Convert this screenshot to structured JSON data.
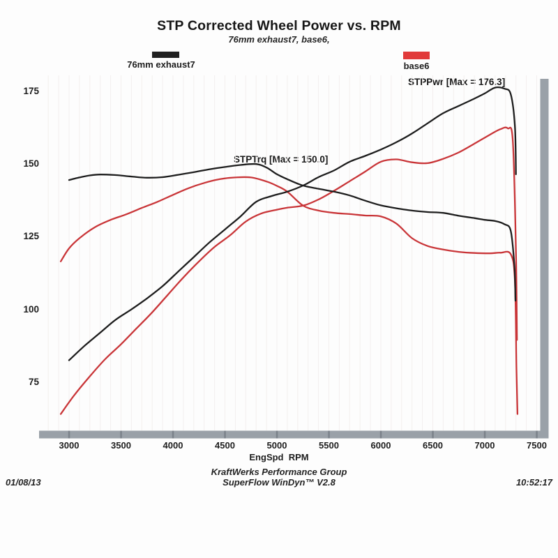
{
  "header": {
    "title": "STP Corrected Wheel Power vs. RPM",
    "subtitle": "76mm exhaust7, base6,"
  },
  "legend": [
    {
      "label": "76mm exhaust7",
      "color": "#202020"
    },
    {
      "label": "base6",
      "color": "#e13a3a"
    }
  ],
  "annotations": {
    "stppwr": "STPPwr [Max = 176.3]",
    "stptrq": "STPTrq [Max = 150.0]"
  },
  "footer": {
    "date": "01/08/13",
    "line1": "KraftWerks Performance Group",
    "line2": "SuperFlow WinDyn™ V2.8",
    "time": "10:52:17"
  },
  "chart_data": {
    "type": "line",
    "title": "STP Corrected Wheel Power vs. RPM",
    "subtitle": "76mm exhaust7, base6,",
    "xlabel": "EngSpd  RPM",
    "ylabel": "",
    "xlim": [
      2800,
      7550
    ],
    "ylim": [
      58,
      184
    ],
    "x_ticks": [
      3000,
      3500,
      4000,
      4500,
      5000,
      5500,
      6000,
      6500,
      7000,
      7500
    ],
    "y_ticks": [
      75,
      100,
      125,
      150,
      175
    ],
    "grid": "faint vertical lines every 100 RPM, no horizontal gridlines",
    "legend_position": "top",
    "axis_frame": {
      "bottom_bar": true,
      "right_bar": true,
      "color": "#9aa1a8",
      "notch_color": "#7b828a"
    },
    "max_values": {
      "stppwr_max": 176.3,
      "stptrq_max": 150.0
    },
    "series": [
      {
        "name": "base6 STPTrq",
        "run": "base6",
        "channel": "STPTrq",
        "color": "#c93538",
        "points": [
          [
            2920,
            116.5
          ],
          [
            3000,
            121
          ],
          [
            3100,
            124.5
          ],
          [
            3250,
            128.3
          ],
          [
            3400,
            130.8
          ],
          [
            3550,
            132.7
          ],
          [
            3700,
            134.9
          ],
          [
            3850,
            137
          ],
          [
            4000,
            139.4
          ],
          [
            4150,
            141.7
          ],
          [
            4300,
            143.5
          ],
          [
            4450,
            144.8
          ],
          [
            4600,
            145.4
          ],
          [
            4750,
            145.4
          ],
          [
            4900,
            144
          ],
          [
            5000,
            142.5
          ],
          [
            5100,
            140.5
          ],
          [
            5252,
            135.7
          ],
          [
            5400,
            134
          ],
          [
            5550,
            133.2
          ],
          [
            5700,
            132.8
          ],
          [
            5850,
            132.3
          ],
          [
            6000,
            132
          ],
          [
            6150,
            129.5
          ],
          [
            6300,
            124.5
          ],
          [
            6450,
            121.8
          ],
          [
            6600,
            120.6
          ],
          [
            6750,
            119.8
          ],
          [
            6900,
            119.4
          ],
          [
            7050,
            119.3
          ],
          [
            7150,
            119.5
          ],
          [
            7250,
            119
          ],
          [
            7290,
            110
          ],
          [
            7305,
            80
          ],
          [
            7315,
            64
          ]
        ]
      },
      {
        "name": "base6 STPPwr",
        "run": "base6",
        "channel": "STPPwr",
        "color": "#c93538",
        "points": [
          [
            2920,
            64
          ],
          [
            3050,
            70.5
          ],
          [
            3200,
            77
          ],
          [
            3350,
            83
          ],
          [
            3500,
            88
          ],
          [
            3650,
            93.5
          ],
          [
            3800,
            99
          ],
          [
            3950,
            105
          ],
          [
            4100,
            111
          ],
          [
            4250,
            116.5
          ],
          [
            4400,
            121.5
          ],
          [
            4550,
            125.5
          ],
          [
            4700,
            130.2
          ],
          [
            4850,
            133
          ],
          [
            5000,
            134.3
          ],
          [
            5100,
            135
          ],
          [
            5252,
            135.7
          ],
          [
            5400,
            137.8
          ],
          [
            5550,
            140.8
          ],
          [
            5700,
            144.1
          ],
          [
            5850,
            147.4
          ],
          [
            6000,
            150.8
          ],
          [
            6150,
            151.6
          ],
          [
            6300,
            150.6
          ],
          [
            6450,
            150.3
          ],
          [
            6600,
            151.8
          ],
          [
            6750,
            154
          ],
          [
            6900,
            157
          ],
          [
            7050,
            160.1
          ],
          [
            7150,
            162
          ],
          [
            7220,
            162.3
          ],
          [
            7270,
            158
          ],
          [
            7300,
            120
          ],
          [
            7310,
            89.5
          ]
        ]
      },
      {
        "name": "76mm exhaust7 STPTrq",
        "run": "76mm exhaust7",
        "channel": "STPTrq",
        "color": "#1d1d1d",
        "points": [
          [
            3000,
            144.5
          ],
          [
            3100,
            145.4
          ],
          [
            3200,
            146.1
          ],
          [
            3300,
            146.4
          ],
          [
            3450,
            146.2
          ],
          [
            3600,
            145.7
          ],
          [
            3750,
            145.3
          ],
          [
            3900,
            145.5
          ],
          [
            4050,
            146.3
          ],
          [
            4200,
            147.2
          ],
          [
            4350,
            148.2
          ],
          [
            4500,
            149
          ],
          [
            4650,
            149.7
          ],
          [
            4800,
            150
          ],
          [
            4900,
            148.8
          ],
          [
            5000,
            146.5
          ],
          [
            5100,
            144.8
          ],
          [
            5252,
            142.6
          ],
          [
            5400,
            141.5
          ],
          [
            5550,
            140.5
          ],
          [
            5700,
            139.2
          ],
          [
            5850,
            137.4
          ],
          [
            6000,
            135.8
          ],
          [
            6150,
            134.8
          ],
          [
            6300,
            134
          ],
          [
            6450,
            133.5
          ],
          [
            6600,
            133.2
          ],
          [
            6750,
            132.2
          ],
          [
            6900,
            131.4
          ],
          [
            7000,
            130.8
          ],
          [
            7100,
            130.4
          ],
          [
            7190,
            129.3
          ],
          [
            7250,
            127
          ],
          [
            7285,
            115
          ],
          [
            7295,
            103
          ]
        ]
      },
      {
        "name": "76mm exhaust7 STPPwr",
        "run": "76mm exhaust7",
        "channel": "STPPwr",
        "color": "#1d1d1d",
        "points": [
          [
            3000,
            82.5
          ],
          [
            3150,
            87.5
          ],
          [
            3300,
            92
          ],
          [
            3450,
            96.5
          ],
          [
            3600,
            100
          ],
          [
            3750,
            103.8
          ],
          [
            3900,
            108
          ],
          [
            4050,
            113
          ],
          [
            4200,
            118
          ],
          [
            4350,
            123
          ],
          [
            4500,
            127.5
          ],
          [
            4650,
            132
          ],
          [
            4800,
            137
          ],
          [
            4950,
            139
          ],
          [
            5100,
            140.5
          ],
          [
            5252,
            142.6
          ],
          [
            5400,
            145.5
          ],
          [
            5550,
            147.8
          ],
          [
            5700,
            150.8
          ],
          [
            5850,
            152.8
          ],
          [
            6000,
            155
          ],
          [
            6150,
            157.5
          ],
          [
            6300,
            160.5
          ],
          [
            6450,
            164
          ],
          [
            6600,
            167.5
          ],
          [
            6750,
            170
          ],
          [
            6900,
            172.5
          ],
          [
            7000,
            174.3
          ],
          [
            7100,
            176.3
          ],
          [
            7190,
            175.9
          ],
          [
            7250,
            174
          ],
          [
            7290,
            163
          ],
          [
            7300,
            146.5
          ]
        ]
      }
    ]
  }
}
